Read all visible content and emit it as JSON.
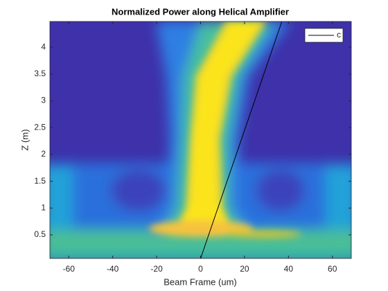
{
  "chart_data": {
    "type": "line",
    "title": "Normalized Power along Helical Amplifier",
    "xlabel": "Beam Frame (um)",
    "ylabel": "Z (m)",
    "xlim": [
      -68.6,
      68.6
    ],
    "ylim": [
      0.06,
      4.48
    ],
    "xticks": [
      -60,
      -40,
      -20,
      0,
      20,
      40,
      60
    ],
    "yticks": [
      0.5,
      1,
      1.5,
      2,
      2.5,
      3,
      3.5,
      4
    ],
    "grid": false,
    "legend": "upper right",
    "series": [
      {
        "name": "c",
        "color": "#000000",
        "x": [
          0,
          37
        ],
        "values": [
          0.06,
          4.48
        ]
      }
    ]
  }
}
